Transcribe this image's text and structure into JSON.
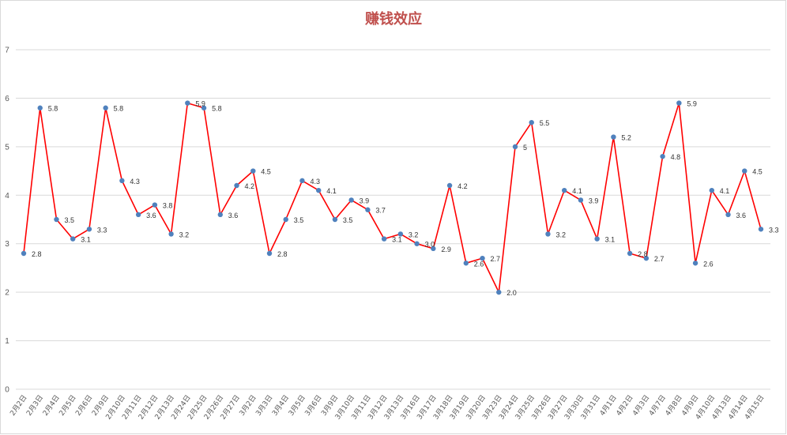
{
  "chart_data": {
    "type": "line",
    "title": "赚钱效应",
    "xlabel": "",
    "ylabel": "",
    "ylim": [
      0,
      7
    ],
    "yticks": [
      0,
      1,
      2,
      3,
      4,
      5,
      6,
      7
    ],
    "grid": true,
    "legend": "none",
    "line_color": "#ff0000",
    "marker_color": "#4f81bd",
    "categories": [
      "2月2日",
      "2月3日",
      "2月4日",
      "2月5日",
      "2月6日",
      "2月9日",
      "2月10日",
      "2月11日",
      "2月12日",
      "2月13日",
      "2月24日",
      "2月25日",
      "2月26日",
      "2月27日",
      "3月2日",
      "3月3日",
      "3月4日",
      "3月5日",
      "3月6日",
      "3月9日",
      "3月10日",
      "3月11日",
      "3月12日",
      "3月13日",
      "3月16日",
      "3月17日",
      "3月18日",
      "3月19日",
      "3月20日",
      "3月23日",
      "3月24日",
      "3月25日",
      "3月26日",
      "3月27日",
      "3月30日",
      "3月31日",
      "4月1日",
      "4月2日",
      "4月3日",
      "4月7日",
      "4月8日",
      "4月9日",
      "4月10日",
      "4月13日",
      "4月14日",
      "4月15日"
    ],
    "values": [
      2.8,
      5.8,
      3.5,
      3.1,
      3.3,
      5.8,
      4.3,
      3.6,
      3.8,
      3.2,
      5.9,
      5.8,
      3.6,
      4.2,
      4.5,
      2.8,
      3.5,
      4.3,
      4.1,
      3.5,
      3.9,
      3.7,
      3.1,
      3.2,
      3.0,
      2.9,
      4.2,
      2.6,
      2.7,
      2.0,
      5,
      5.5,
      3.2,
      4.1,
      3.9,
      3.1,
      5.2,
      2.8,
      2.7,
      4.8,
      5.9,
      2.6,
      4.1,
      3.6,
      4.5,
      3.3
    ],
    "data_labels": [
      "2.8",
      "5.8",
      "3.5",
      "3.1",
      "3.3",
      "5.8",
      "4.3",
      "3.6",
      "3.8",
      "3.2",
      "5.9",
      "5.8",
      "3.6",
      "4.2",
      "4.5",
      "2.8",
      "3.5",
      "4.3",
      "4.1",
      "3.5",
      "3.9",
      "3.7",
      "3.1",
      "3.2",
      "3.0",
      "2.9",
      "4.2",
      "2.6",
      "2.7",
      "2.0",
      "5",
      "5.5",
      "3.2",
      "4.1",
      "3.9",
      "3.1",
      "5.2",
      "2.8",
      "2.7",
      "4.8",
      "5.9",
      "2.6",
      "4.1",
      "3.6",
      "4.5",
      "3.3"
    ]
  }
}
